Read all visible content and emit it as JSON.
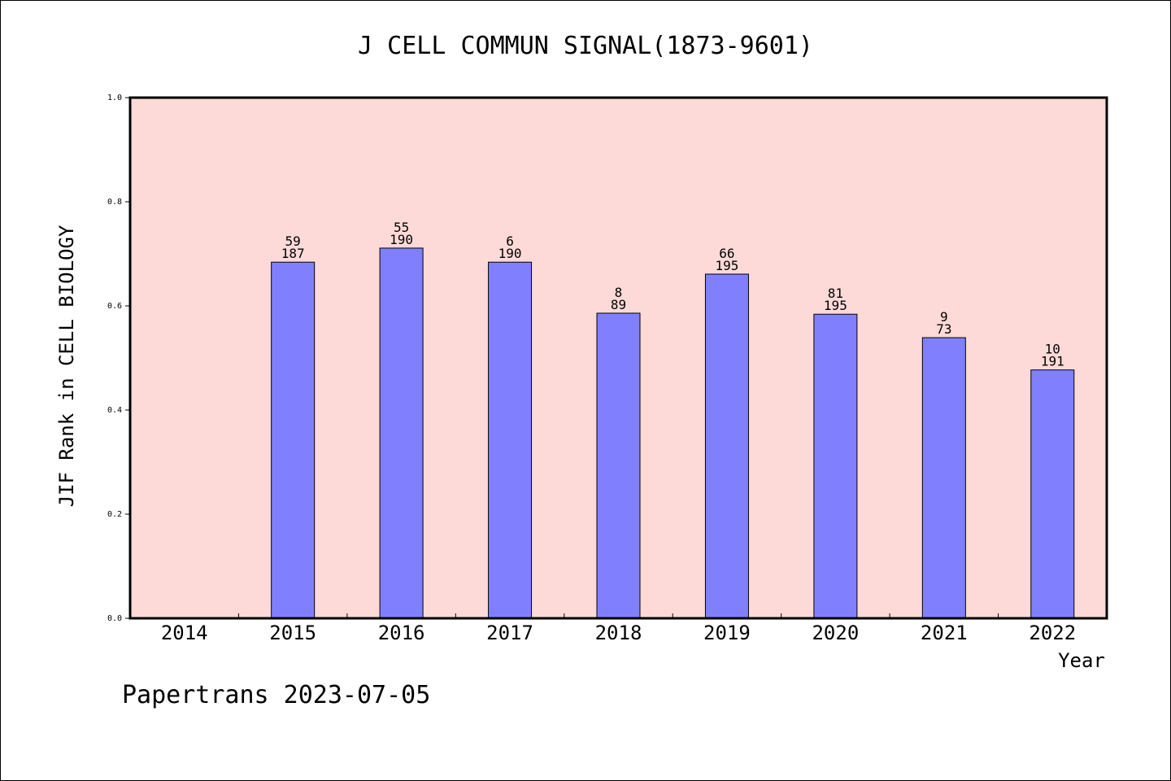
{
  "chart_data": {
    "type": "bar",
    "title": "J CELL COMMUN SIGNAL(1873-9601)",
    "xlabel": "Year",
    "ylabel": "JIF Rank in CELL BIOLOGY",
    "ylim": [
      0,
      1.0
    ],
    "yticks": [
      "0.0",
      "0.2",
      "0.4",
      "0.6",
      "0.8",
      "1.0"
    ],
    "categories": [
      "2014",
      "2015",
      "2016",
      "2017",
      "2018",
      "2019",
      "2020",
      "2021",
      "2022"
    ],
    "values": [
      null,
      0.684,
      0.711,
      0.684,
      0.586,
      0.661,
      0.584,
      0.539,
      0.477
    ],
    "label_top": [
      "",
      "59",
      "55",
      "6",
      "8",
      "66",
      "81",
      "9",
      "10"
    ],
    "label_bottom": [
      "",
      "187",
      "190",
      "190",
      "89",
      "195",
      "195",
      "73",
      "191"
    ],
    "grid": false,
    "colors": {
      "plot_bg": "#FDDAD8",
      "bar": "#8080FF"
    }
  },
  "footer": "Papertrans 2023-07-05"
}
